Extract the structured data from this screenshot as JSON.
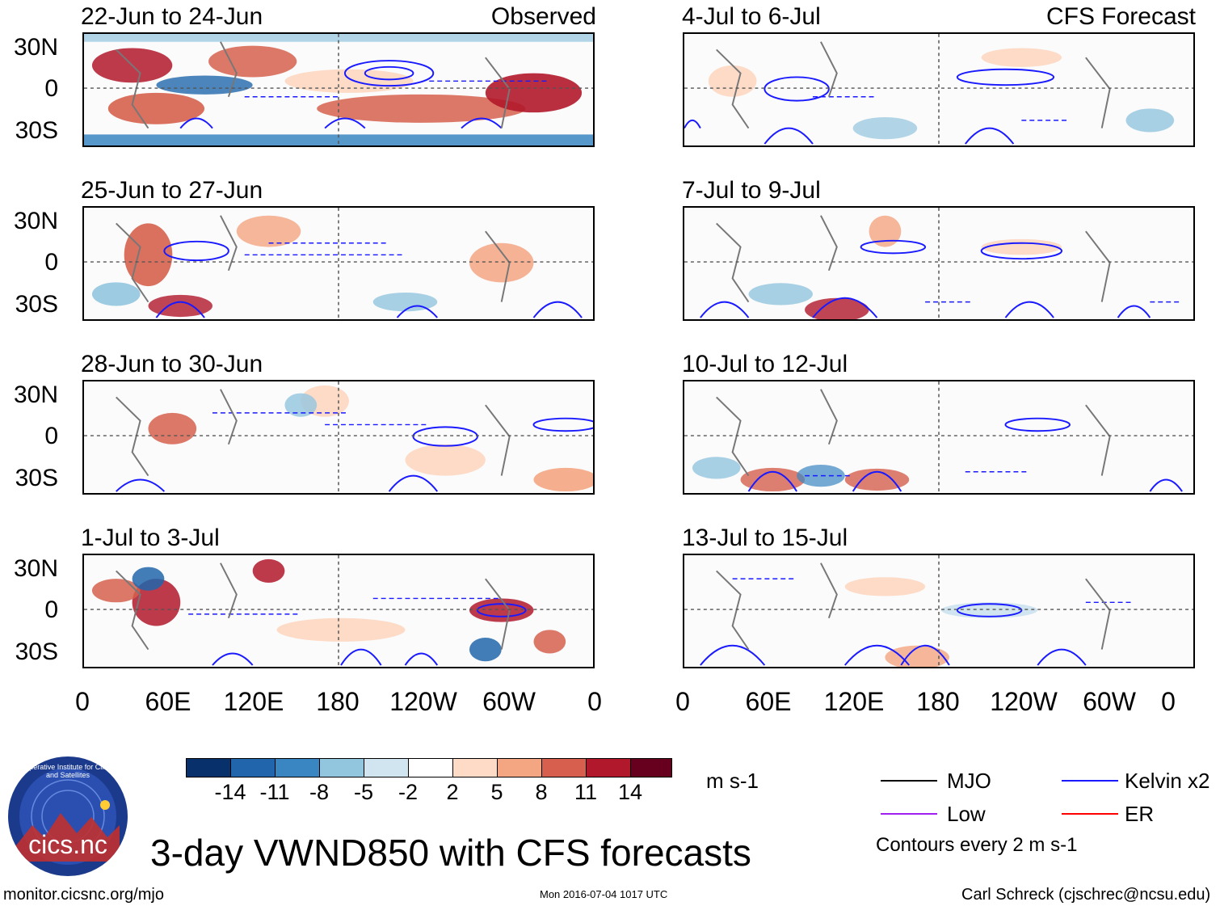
{
  "header": {
    "left_label": "Observed",
    "right_label": "CFS Forecast"
  },
  "panels": {
    "left": [
      "22-Jun to 24-Jun",
      "25-Jun to 27-Jun",
      "28-Jun to 30-Jun",
      "1-Jul to 3-Jul"
    ],
    "right": [
      "4-Jul to 6-Jul",
      "7-Jul to 9-Jul",
      "10-Jul to 12-Jul",
      "13-Jul to 15-Jul"
    ]
  },
  "axes": {
    "lat_labels": [
      "30N",
      "0",
      "30S"
    ],
    "lon_labels": [
      "0",
      "60E",
      "120E",
      "180",
      "120W",
      "60W",
      "0"
    ]
  },
  "colorbar": {
    "labels": [
      "-14",
      "-11",
      "-8",
      "-5",
      "-2",
      "2",
      "5",
      "8",
      "11",
      "14"
    ],
    "colors": [
      "#08306b",
      "#2166ac",
      "#3a86c2",
      "#92c5de",
      "#d1e5f0",
      "#ffffff",
      "#fddbc7",
      "#f4a582",
      "#d6604d",
      "#b2182b",
      "#67001f"
    ],
    "units": "m s-1"
  },
  "legend": {
    "mjo": "MJO",
    "kelvin": "Kelvin x2",
    "low": "Low",
    "er": "ER",
    "contours": "Contours every 2 m s-1",
    "colors": {
      "mjo": "#000000",
      "kelvin": "#1a1aff",
      "low": "#a020f0",
      "er": "#ff0000"
    }
  },
  "logo": {
    "text": "cics.nc",
    "ring_text": "Cooperative Institute for Climate and Satellites"
  },
  "title": "3-day VWND850 with CFS forecasts",
  "footer": {
    "url": "monitor.cicsnc.org/mjo",
    "timestamp": "Mon 2016-07-04 1017 UTC",
    "author": "Carl Schreck (cjschrec@ncsu.edu)"
  }
}
